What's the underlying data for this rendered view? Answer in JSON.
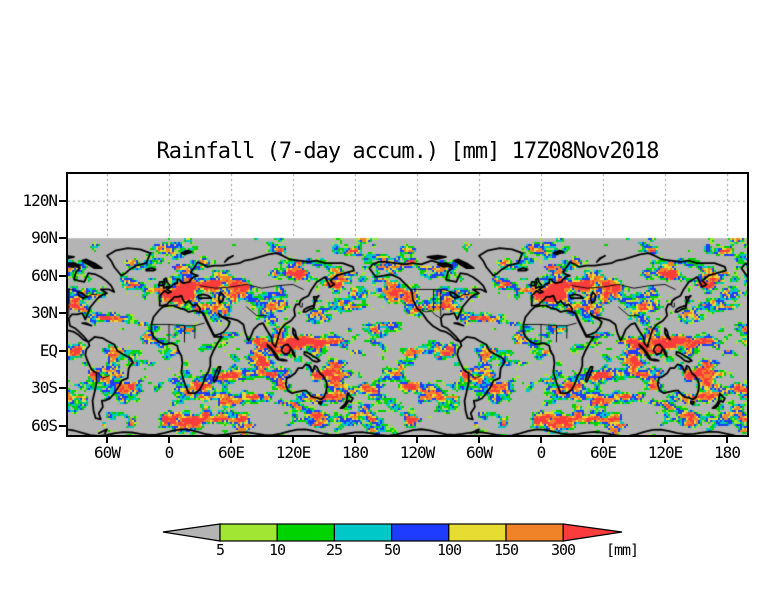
{
  "title": "Rainfall (7-day accum.) [mm] 17Z08Nov2018",
  "axes": {
    "x_labels": [
      "60W",
      "0",
      "60E",
      "120E",
      "180",
      "120W",
      "60W",
      "0",
      "60E",
      "120E",
      "180"
    ],
    "y_labels": [
      "120N",
      "90N",
      "60N",
      "30N",
      "EQ",
      "30S",
      "60S"
    ]
  },
  "legend": {
    "labels": [
      "5",
      "10",
      "25",
      "50",
      "100",
      "150",
      "300"
    ],
    "units_label": "[mm]",
    "thresholds_mm": [
      5,
      10,
      25,
      50,
      100,
      150,
      300
    ],
    "bin_colors": [
      "#b4b4b4",
      "#a0e632",
      "#00d400",
      "#00c8c8",
      "#1e3cff",
      "#e6dc32",
      "#f08228",
      "#fa3c3c"
    ],
    "underflow_arrow_color": "#b4b4b4",
    "overflow_arrow_color": "#fa3c3c"
  },
  "chart_data": {
    "type": "heatmap",
    "title": "Rainfall (7-day accum.) [mm] 17Z08Nov2018",
    "variable": "7-day accumulated rainfall",
    "units": "mm",
    "valid_time": "17Z08Nov2018",
    "projection": "global equirectangular, longitudes repeated (approx. 100W to 200E+360)",
    "x_axis": {
      "tick_labels": [
        "60W",
        "0",
        "60E",
        "120E",
        "180",
        "120W",
        "60W",
        "0",
        "60E",
        "120E",
        "180"
      ],
      "tick_lons_deg": [
        -60,
        0,
        60,
        120,
        180,
        240,
        300,
        360,
        420,
        480,
        540
      ],
      "range_deg": [
        -99,
        558
      ]
    },
    "y_axis": {
      "tick_labels": [
        "120N",
        "90N",
        "60N",
        "30N",
        "EQ",
        "30S",
        "60S"
      ],
      "tick_lats_deg": [
        120,
        90,
        60,
        30,
        0,
        -30,
        -60
      ],
      "range_deg": [
        -69,
        141
      ]
    },
    "data_region_lat_deg": [
      -69,
      90
    ],
    "no_data_color": "#b4b4b4",
    "gridlines": {
      "style": "dotted",
      "color": "#999999",
      "vertical_every_deg": 60,
      "horizontal_at_lat": [
        120
      ]
    },
    "overlay": "black coastlines and country borders",
    "legend": {
      "position": "bottom",
      "units_label": "[mm]",
      "bins": [
        {
          "range": "< 5",
          "color": "#b4b4b4"
        },
        {
          "range": "5 - 10",
          "color": "#a0e632"
        },
        {
          "range": "10 - 25",
          "color": "#00d400"
        },
        {
          "range": "25 - 50",
          "color": "#00c8c8"
        },
        {
          "range": "50 - 100",
          "color": "#1e3cff"
        },
        {
          "range": "100 - 150",
          "color": "#e6dc32"
        },
        {
          "range": "150 - 300",
          "color": "#f08228"
        },
        {
          "range": "> 300",
          "color": "#fa3c3c"
        }
      ]
    },
    "pattern_summary": "Wet bands: N-Atlantic/N-Pacific storm tracks 35-60N, ITCZ near 0-10N with orange/red cores, southern storm track 30-60S; dry gray subtropics, Sahara, Antarctic interior; no data poleward of 90N band shown white above gray field"
  }
}
